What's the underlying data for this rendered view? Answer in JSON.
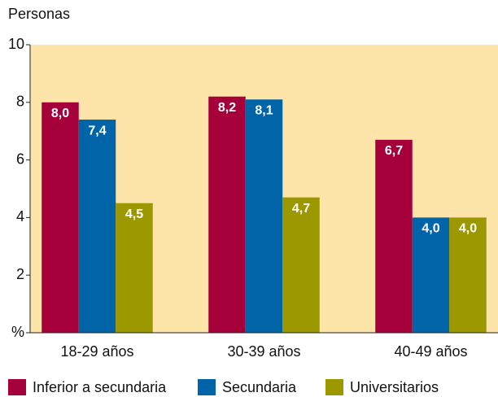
{
  "chart_data": {
    "type": "bar",
    "y_label": "Personas",
    "categories": [
      "18-29 años",
      "30-39 años",
      "40-49 años"
    ],
    "series": [
      {
        "name": "Inferior a secundaria",
        "color": "#a5003a",
        "values": [
          8.0,
          8.2,
          6.7
        ],
        "value_labels": [
          "8,0",
          "8,2",
          "6,7"
        ]
      },
      {
        "name": "Secundaria",
        "color": "#0064a8",
        "values": [
          7.4,
          8.1,
          4.0
        ],
        "value_labels": [
          "7,4",
          "8,1",
          "4,0"
        ]
      },
      {
        "name": "Universitarios",
        "color": "#9c9800",
        "values": [
          4.5,
          4.7,
          4.0
        ],
        "value_labels": [
          "4,5",
          "4,7",
          "4,0"
        ]
      }
    ],
    "ylim": [
      0,
      10
    ],
    "yticks": [
      {
        "value": 0,
        "label": "%"
      },
      2,
      4,
      6,
      8,
      10
    ],
    "background": "#fde4a8",
    "legend": "bottom"
  }
}
